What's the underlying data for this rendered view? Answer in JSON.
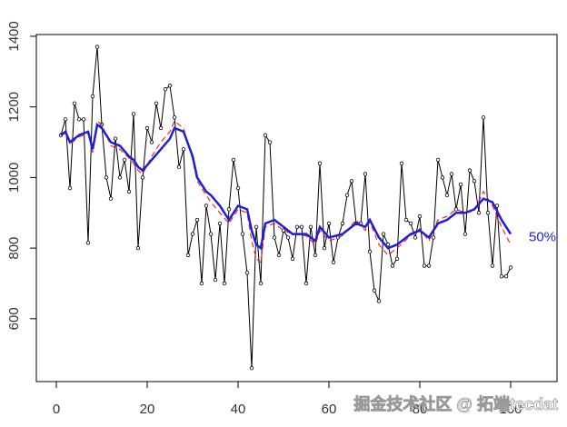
{
  "chart_data": {
    "type": "line",
    "xlim": [
      -4.4,
      110.2
    ],
    "ylim": [
      422,
      1405
    ],
    "xticks": [
      0,
      20,
      40,
      60,
      80,
      100
    ],
    "yticks": [
      600,
      800,
      1000,
      1200,
      1400
    ],
    "annotation": {
      "text": "50%",
      "x": 107,
      "y": 830,
      "color": "#1f1fd6"
    },
    "series": [
      {
        "color": "#000000",
        "line_style": "solid",
        "marker": "circle",
        "width": 1,
        "x": [
          1,
          2,
          3,
          4,
          5,
          6,
          7,
          8,
          9,
          10,
          11,
          12,
          13,
          14,
          15,
          16,
          17,
          18,
          19,
          20,
          21,
          22,
          23,
          24,
          25,
          26,
          27,
          28,
          29,
          30,
          31,
          32,
          33,
          34,
          35,
          36,
          37,
          38,
          39,
          40,
          41,
          42,
          43,
          44,
          45,
          46,
          47,
          48,
          49,
          50,
          51,
          52,
          53,
          54,
          55,
          56,
          57,
          58,
          59,
          60,
          61,
          62,
          63,
          64,
          65,
          66,
          67,
          68,
          69,
          70,
          71,
          72,
          73,
          74,
          75,
          76,
          77,
          78,
          79,
          80,
          81,
          82,
          83,
          84,
          85,
          86,
          87,
          88,
          89,
          90,
          91,
          92,
          93,
          94,
          95,
          96,
          97,
          98,
          99,
          100
        ],
        "values": [
          1120,
          1165,
          970,
          1210,
          1165,
          1165,
          815,
          1230,
          1370,
          1150,
          1000,
          940,
          1110,
          1000,
          1050,
          960,
          1180,
          800,
          1000,
          1140,
          1100,
          1210,
          1140,
          1250,
          1260,
          1170,
          1030,
          1080,
          780,
          840,
          880,
          700,
          920,
          840,
          710,
          870,
          700,
          910,
          1050,
          970,
          840,
          730,
          460,
          860,
          700,
          1120,
          1100,
          830,
          780,
          850,
          830,
          770,
          860,
          860,
          700,
          860,
          780,
          1040,
          800,
          870,
          760,
          830,
          870,
          950,
          990,
          870,
          870,
          1010,
          790,
          680,
          650,
          840,
          810,
          750,
          770,
          1040,
          880,
          870,
          830,
          890,
          750,
          750,
          830,
          1050,
          1000,
          950,
          1010,
          910,
          980,
          840,
          1020,
          990,
          900,
          1170,
          900,
          750,
          920,
          720,
          720,
          745
        ]
      },
      {
        "color": "#ff0000",
        "line_style": "dashed",
        "width": 1,
        "x": [
          1,
          2,
          3,
          5,
          7,
          8,
          9,
          10,
          12,
          14,
          16,
          17,
          18,
          19,
          21,
          23,
          25,
          26,
          28,
          30,
          31,
          33,
          34,
          36,
          38,
          40,
          42,
          43,
          44,
          45,
          46,
          48,
          50,
          52,
          55,
          57,
          58,
          60,
          63,
          66,
          68,
          69,
          71,
          73,
          75,
          78,
          80,
          82,
          84,
          86,
          88,
          90,
          92,
          94,
          96,
          98,
          100
        ],
        "values": [
          1120,
          1125,
          1095,
          1115,
          1125,
          1070,
          1160,
          1150,
          1090,
          1080,
          1055,
          1040,
          1020,
          1010,
          1060,
          1100,
          1130,
          1160,
          1140,
          1050,
          990,
          950,
          930,
          900,
          870,
          910,
          900,
          820,
          770,
          760,
          860,
          870,
          850,
          840,
          835,
          810,
          850,
          820,
          835,
          880,
          850,
          875,
          810,
          780,
          800,
          835,
          855,
          820,
          880,
          890,
          910,
          900,
          905,
          960,
          920,
          860,
          810
        ]
      },
      {
        "color": "#1f1fd6",
        "line_style": "solid",
        "width": 2.5,
        "x": [
          1,
          2,
          3,
          5,
          7,
          8,
          9,
          10,
          12,
          14,
          16,
          17,
          18,
          19,
          21,
          23,
          25,
          26,
          28,
          30,
          31,
          33,
          34,
          36,
          38,
          40,
          42,
          43,
          44,
          45,
          46,
          48,
          50,
          52,
          55,
          57,
          58,
          60,
          63,
          66,
          68,
          69,
          71,
          73,
          75,
          78,
          80,
          82,
          84,
          86,
          88,
          90,
          92,
          94,
          96,
          98,
          100
        ],
        "values": [
          1120,
          1130,
          1100,
          1120,
          1130,
          1080,
          1150,
          1140,
          1100,
          1090,
          1060,
          1050,
          1030,
          1020,
          1050,
          1080,
          1110,
          1140,
          1130,
          1060,
          1000,
          960,
          950,
          920,
          880,
          920,
          910,
          850,
          810,
          800,
          870,
          880,
          860,
          840,
          840,
          820,
          860,
          830,
          840,
          870,
          860,
          880,
          830,
          800,
          810,
          840,
          850,
          830,
          870,
          880,
          900,
          900,
          910,
          940,
          930,
          880,
          840
        ]
      }
    ]
  },
  "watermark": "掘金技术社区 @ 拓端tecdat"
}
